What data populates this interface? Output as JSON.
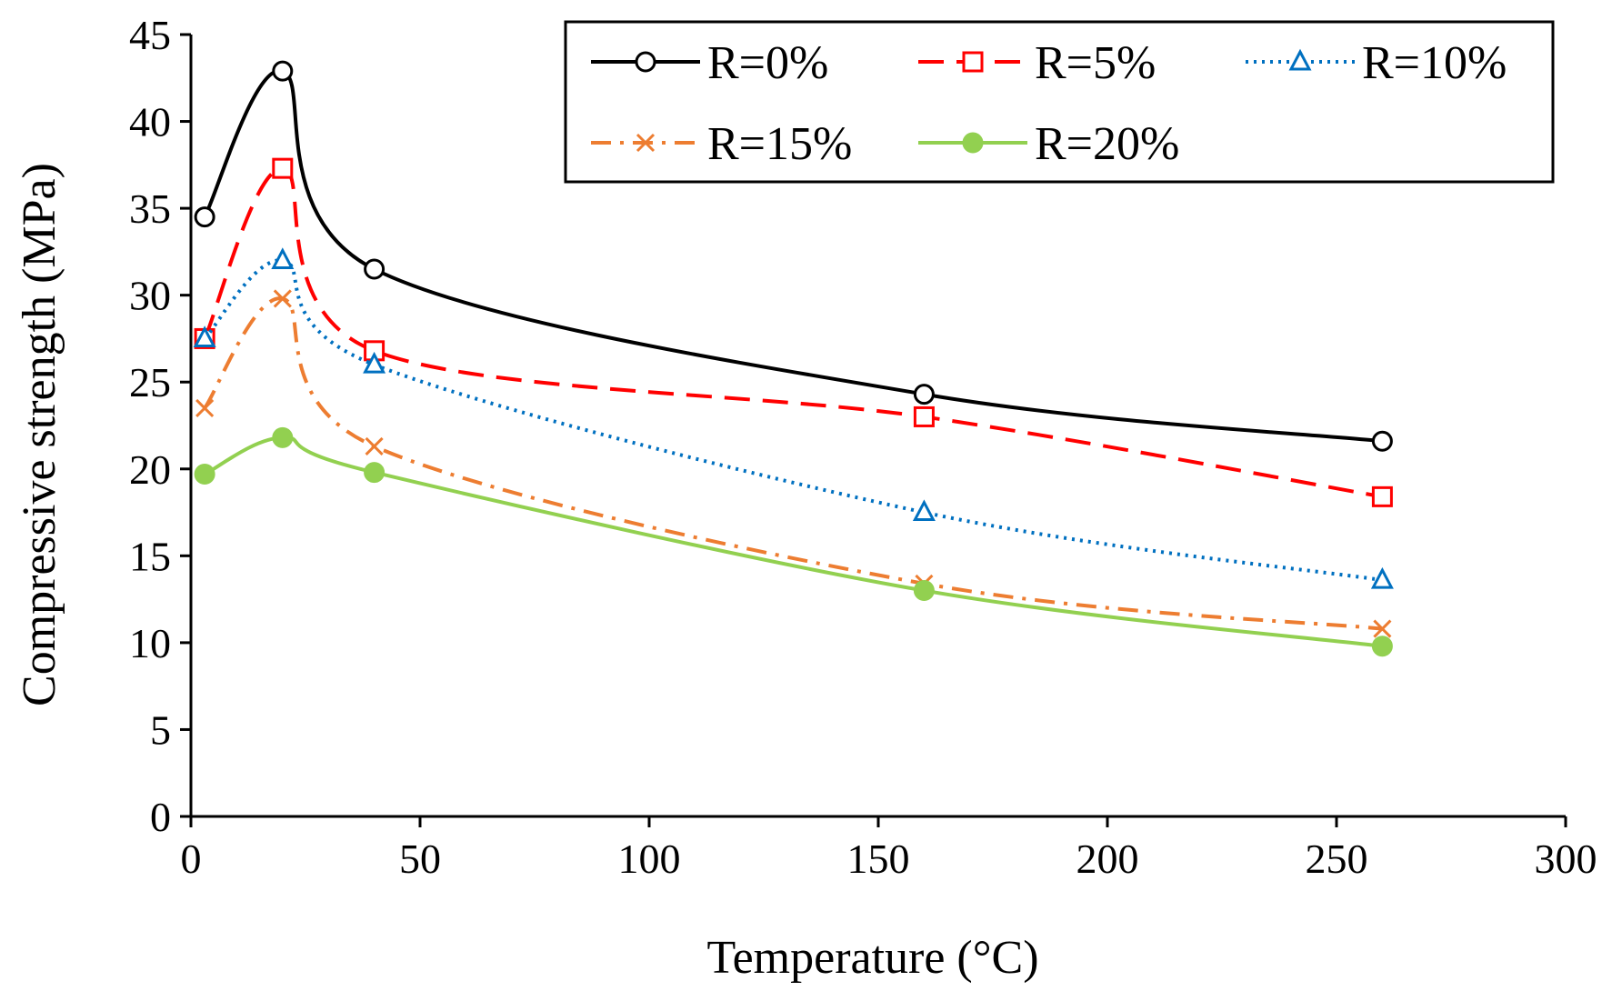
{
  "chart_data": {
    "type": "line",
    "title": "",
    "xlabel": "Temperature (°C)",
    "ylabel": "Compressive strength (MPa)",
    "xlim": [
      0,
      300
    ],
    "ylim": [
      0,
      45
    ],
    "xticks": [
      0,
      50,
      100,
      150,
      200,
      250,
      300
    ],
    "yticks": [
      0,
      5,
      10,
      15,
      20,
      25,
      30,
      35,
      40,
      45
    ],
    "grid": false,
    "legend_position": "top-right",
    "x": [
      3,
      20,
      40,
      160,
      260
    ],
    "series": [
      {
        "name": "R=0%",
        "values": [
          34.5,
          42.9,
          31.5,
          24.3,
          21.6
        ],
        "color": "#000000",
        "dash": "solid",
        "marker": "open-circle"
      },
      {
        "name": "R=5%",
        "values": [
          27.5,
          37.3,
          26.8,
          23.0,
          18.4
        ],
        "color": "#ff0000",
        "dash": "dashed",
        "marker": "open-square"
      },
      {
        "name": "R=10%",
        "values": [
          27.5,
          32.0,
          26.0,
          17.5,
          13.6
        ],
        "color": "#0070c0",
        "dash": "dotted",
        "marker": "open-triangle"
      },
      {
        "name": "R=15%",
        "values": [
          23.5,
          29.8,
          21.3,
          13.4,
          10.8
        ],
        "color": "#ed7d31",
        "dash": "dash-dot",
        "marker": "x"
      },
      {
        "name": "R=20%",
        "values": [
          19.7,
          21.8,
          19.8,
          13.0,
          9.8
        ],
        "color": "#92d050",
        "dash": "solid",
        "marker": "filled-circle"
      }
    ]
  }
}
